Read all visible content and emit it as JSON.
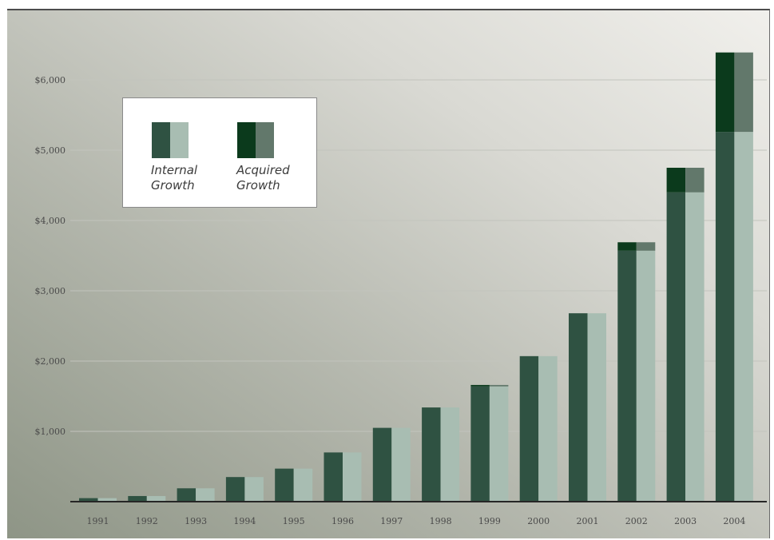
{
  "chart_data": {
    "type": "bar",
    "categories": [
      "1991",
      "1992",
      "1993",
      "1994",
      "1995",
      "1996",
      "1997",
      "1998",
      "1999",
      "2000",
      "2001",
      "2002",
      "2003",
      "2004"
    ],
    "series": [
      {
        "name": "Internal Growth",
        "values": [
          50,
          80,
          190,
          350,
          470,
          700,
          1050,
          1340,
          1640,
          2070,
          2680,
          3570,
          4400,
          5260
        ]
      },
      {
        "name": "Acquired Growth",
        "values": [
          0,
          0,
          0,
          0,
          0,
          0,
          0,
          0,
          20,
          0,
          0,
          120,
          350,
          1130
        ]
      }
    ],
    "stacked": true,
    "y_ticks": [
      "$1,000",
      "$2,000",
      "$3,000",
      "$4,000",
      "$5,000",
      "$6,000"
    ],
    "y_tick_values": [
      1000,
      2000,
      3000,
      4000,
      5000,
      6000
    ],
    "ylim": [
      0,
      6600
    ],
    "grid": true,
    "legend_position": "top-left",
    "colors": {
      "internal_dark": "#2f5242",
      "internal_light": "#a8bdb2",
      "acquired_dark": "#0b3a1c",
      "acquired_light": "#62786b",
      "grid": "#c2c4bd",
      "axis": "#262626"
    }
  },
  "legend": {
    "internal": [
      "Internal",
      "Growth"
    ],
    "acquired": [
      "Acquired",
      "Growth"
    ]
  }
}
